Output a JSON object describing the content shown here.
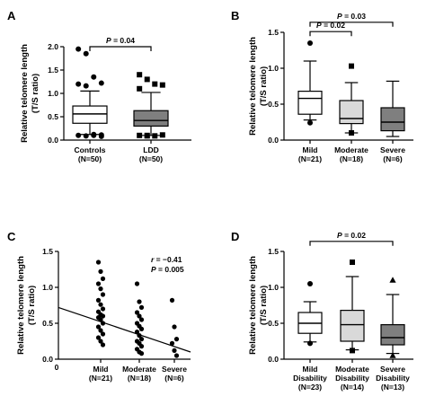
{
  "chart_data": [
    {
      "panel": "A",
      "type": "box",
      "ylabel": [
        "Relative telomere length",
        "(T/S ratio)"
      ],
      "ylim": [
        0,
        2.0
      ],
      "yticks": [
        "0.0",
        "0.5",
        "1.0",
        "1.5",
        "2.0"
      ],
      "categories": [
        {
          "label": "Controls",
          "n": "(N=50)",
          "fill": "#ffffff",
          "q1": 0.36,
          "median": 0.56,
          "q3": 0.73,
          "whisker_low": 0.12,
          "whisker_high": 1.05,
          "marker": "circle",
          "outliers": [
            1.95,
            1.85,
            1.35,
            1.22,
            1.2,
            1.16,
            0.12,
            0.11,
            0.1,
            0.09,
            0.1,
            0.08
          ]
        },
        {
          "label": "LDD",
          "n": "(N=50)",
          "fill": "#7f7f7f",
          "q1": 0.3,
          "median": 0.42,
          "q3": 0.63,
          "whisker_low": 0.1,
          "whisker_high": 1.02,
          "marker": "square",
          "outliers": [
            1.4,
            1.3,
            1.2,
            1.18,
            1.1,
            0.1,
            0.09,
            0.11,
            0.1,
            0.09
          ]
        }
      ],
      "comparisons": [
        {
          "from": 0,
          "to": 1,
          "label": "P = 0.04",
          "y": 2.0
        }
      ]
    },
    {
      "panel": "B",
      "type": "box",
      "ylabel": [
        "Relative telomere length",
        "(T/S ratio)"
      ],
      "ylim": [
        0,
        1.5
      ],
      "yticks": [
        "0.0",
        "0.5",
        "1.0",
        "1.5"
      ],
      "categories": [
        {
          "label": "Mild",
          "n": "(N=21)",
          "fill": "#ffffff",
          "q1": 0.36,
          "median": 0.58,
          "q3": 0.68,
          "whisker_low": 0.28,
          "whisker_high": 1.1,
          "marker": "circle",
          "outliers": [
            1.35,
            0.24
          ]
        },
        {
          "label": "Moderate",
          "n": "(N=18)",
          "fill": "#d9d9d9",
          "q1": 0.23,
          "median": 0.3,
          "q3": 0.55,
          "whisker_low": 0.1,
          "whisker_high": 0.8,
          "marker": "square",
          "outliers": [
            1.03,
            0.1
          ]
        },
        {
          "label": "Severe",
          "n": "(N=6)",
          "fill": "#7f7f7f",
          "q1": 0.13,
          "median": 0.25,
          "q3": 0.45,
          "whisker_low": 0.05,
          "whisker_high": 0.82,
          "marker": "triangle",
          "outliers": []
        }
      ],
      "comparisons": [
        {
          "from": 0,
          "to": 2,
          "label": "P = 0.03",
          "y": 1.64
        },
        {
          "from": 0,
          "to": 1,
          "label": "P = 0.02",
          "y": 1.51
        }
      ]
    },
    {
      "panel": "C",
      "type": "scatter",
      "ylabel": [
        "Relative telomere length",
        "(T/S ratio)"
      ],
      "ylim": [
        0,
        1.5
      ],
      "yticks": [
        "0.0",
        "0.5",
        "1.0",
        "1.5"
      ],
      "xorigin_label": "0",
      "categories": [
        {
          "label": "Mild",
          "n": "(N=21)",
          "points": [
            1.35,
            1.22,
            1.12,
            1.05,
            0.98,
            0.9,
            0.82,
            0.76,
            0.7,
            0.66,
            0.62,
            0.6,
            0.58,
            0.55,
            0.5,
            0.45,
            0.4,
            0.35,
            0.3,
            0.25,
            0.2
          ]
        },
        {
          "label": "Moderate",
          "n": "(N=18)",
          "points": [
            1.05,
            0.8,
            0.72,
            0.65,
            0.6,
            0.55,
            0.5,
            0.46,
            0.42,
            0.38,
            0.33,
            0.28,
            0.25,
            0.22,
            0.18,
            0.14,
            0.1,
            0.08
          ]
        },
        {
          "label": "Severe",
          "n": "(N=6)",
          "points": [
            0.82,
            0.45,
            0.28,
            0.22,
            0.12,
            0.05
          ]
        }
      ],
      "regression": {
        "y_at_origin": 0.72,
        "y_at_end": 0.1
      },
      "annotation": [
        "r = −0.41",
        "P = 0.005"
      ]
    },
    {
      "panel": "D",
      "type": "box",
      "ylabel": [
        "Relative telomere length",
        "(T/S ratio)"
      ],
      "ylim": [
        0,
        1.5
      ],
      "yticks": [
        "0.0",
        "0.5",
        "1.0",
        "1.5"
      ],
      "categories": [
        {
          "label": [
            "Mild",
            "Disability"
          ],
          "n": "(N=23)",
          "fill": "#ffffff",
          "q1": 0.36,
          "median": 0.5,
          "q3": 0.65,
          "whisker_low": 0.24,
          "whisker_high": 0.8,
          "marker": "circle",
          "outliers": [
            1.05,
            0.22
          ]
        },
        {
          "label": [
            "Moderate",
            "Disability"
          ],
          "n": "(N=14)",
          "fill": "#d9d9d9",
          "q1": 0.25,
          "median": 0.48,
          "q3": 0.68,
          "whisker_low": 0.13,
          "whisker_high": 1.15,
          "marker": "square",
          "outliers": [
            1.35,
            0.12
          ]
        },
        {
          "label": [
            "Severe",
            "Disability"
          ],
          "n": "(N=13)",
          "fill": "#7f7f7f",
          "q1": 0.2,
          "median": 0.3,
          "q3": 0.48,
          "whisker_low": 0.08,
          "whisker_high": 0.9,
          "marker": "triangle",
          "outliers": [
            1.1,
            0.05
          ]
        }
      ],
      "comparisons": [
        {
          "from": 0,
          "to": 2,
          "label": "P = 0.02",
          "y": 1.64
        }
      ]
    }
  ]
}
